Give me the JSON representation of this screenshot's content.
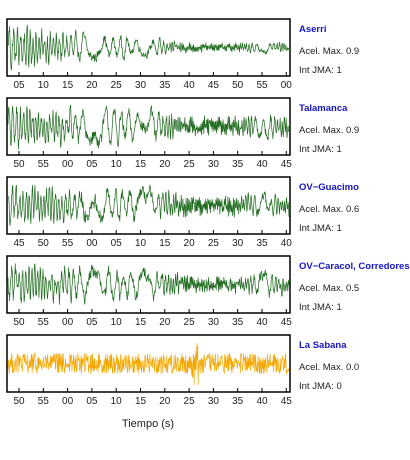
{
  "colors": {
    "trace_default": "#1f6b1f",
    "trace_alert": "#f5a600",
    "station_name": "#1414c8",
    "frame": "#000000"
  },
  "chart_data": {
    "type": "line",
    "xlabel": "Tiempo (s)",
    "panels": [
      {
        "station": "Aserri",
        "acel_max": "Acel. Max. 0.9",
        "int_jma": "Int JMA: 1",
        "trace_color": "#1f6b1f",
        "envelope": "decay",
        "amplitude": 0.95,
        "ticks": [
          "05",
          "10",
          "15",
          "20",
          "25",
          "30",
          "35",
          "40",
          "45",
          "50",
          "55",
          "00"
        ]
      },
      {
        "station": "Talamanca",
        "acel_max": "Acel. Max. 0.9",
        "int_jma": "Int JMA: 1",
        "trace_color": "#1f6b1f",
        "envelope": "slow_decay",
        "amplitude": 0.85,
        "ticks": [
          "50",
          "55",
          "00",
          "05",
          "10",
          "15",
          "20",
          "25",
          "30",
          "35",
          "40",
          "45"
        ]
      },
      {
        "station": "OV−Guacimo",
        "acel_max": "Acel. Max. 0.6",
        "int_jma": "Int JMA: 1",
        "trace_color": "#1f6b1f",
        "envelope": "slow_decay",
        "amplitude": 0.85,
        "ticks": [
          "45",
          "50",
          "55",
          "00",
          "05",
          "10",
          "15",
          "20",
          "25",
          "30",
          "35",
          "40"
        ]
      },
      {
        "station": "OV−Caracol, Corredores",
        "acel_max": "Acel. Max. 0.5",
        "int_jma": "Int JMA: 1",
        "trace_color": "#1f6b1f",
        "envelope": "slow_decay",
        "amplitude": 0.8,
        "ticks": [
          "50",
          "55",
          "00",
          "05",
          "10",
          "15",
          "20",
          "25",
          "30",
          "35",
          "40",
          "45"
        ]
      },
      {
        "station": "La Sabana",
        "acel_max": "Acel. Max. 0.0",
        "int_jma": "Int JMA: 0",
        "trace_color": "#f5a600",
        "envelope": "noise",
        "amplitude": 0.55,
        "ticks": [
          "50",
          "55",
          "00",
          "05",
          "10",
          "15",
          "20",
          "25",
          "30",
          "35",
          "40",
          "45"
        ]
      }
    ]
  }
}
